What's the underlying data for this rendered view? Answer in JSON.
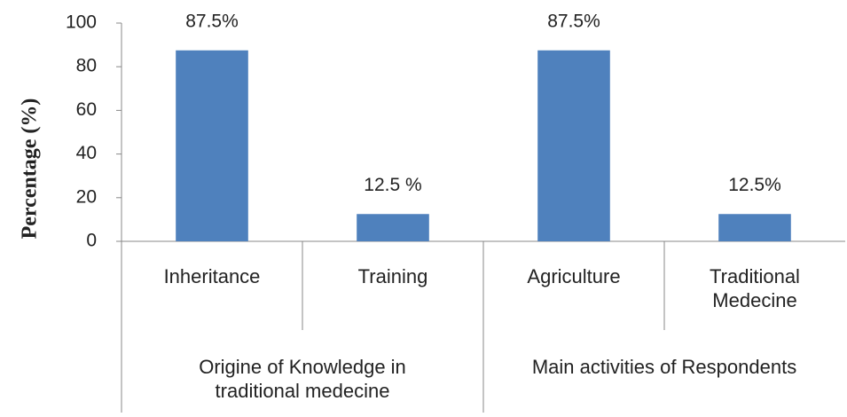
{
  "chart_data": {
    "type": "bar",
    "y_label": "Percentage (%)",
    "groups": [
      {
        "label": "Origine of Knowledge in traditional medecine",
        "categories": [
          "Inheritance",
          "Training"
        ]
      },
      {
        "label": "Main activities of Respondents",
        "categories": [
          "Agriculture",
          "Traditional Medecine"
        ]
      }
    ],
    "values": [
      87.5,
      12.5,
      87.5,
      12.5
    ],
    "value_labels": [
      "87.5%",
      "12.5 %",
      "87.5%",
      "12.5%"
    ],
    "color": "#4f81bd",
    "ylim": [
      0,
      100
    ],
    "yticks": [
      0,
      20,
      40,
      60,
      80,
      100
    ],
    "grid": false
  }
}
